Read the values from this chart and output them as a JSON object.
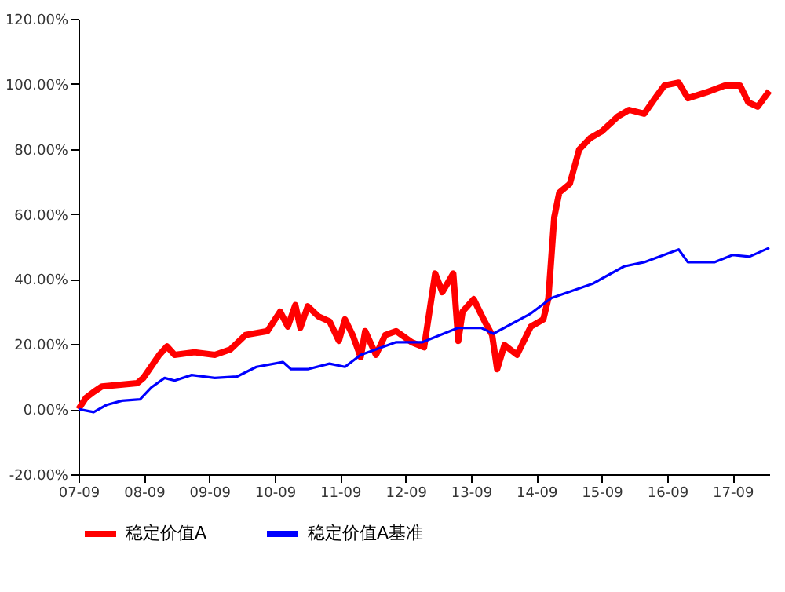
{
  "chart_data": {
    "type": "line",
    "legend": "bottom",
    "grid": false,
    "line_style": "solid",
    "marker": "none",
    "xlim": [
      "2007-09-01",
      "2018-03-25"
    ],
    "xticks": [
      {
        "value": "2007-09-01",
        "label": "07-09"
      },
      {
        "value": "2008-09-01",
        "label": "08-09"
      },
      {
        "value": "2009-09-01",
        "label": "09-09"
      },
      {
        "value": "2010-09-01",
        "label": "10-09"
      },
      {
        "value": "2011-09-01",
        "label": "11-09"
      },
      {
        "value": "2012-09-01",
        "label": "12-09"
      },
      {
        "value": "2013-09-01",
        "label": "13-09"
      },
      {
        "value": "2014-09-01",
        "label": "14-09"
      },
      {
        "value": "2015-09-01",
        "label": "15-09"
      },
      {
        "value": "2016-09-01",
        "label": "16-09"
      },
      {
        "value": "2017-09-01",
        "label": "17-09"
      }
    ],
    "ylim": [
      -20,
      120
    ],
    "yticks": [
      {
        "value": -20,
        "label": "-20.00%"
      },
      {
        "value": 0,
        "label": "0.00%"
      },
      {
        "value": 20,
        "label": "20.00%"
      },
      {
        "value": 40,
        "label": "40.00%"
      },
      {
        "value": 60,
        "label": "60.00%"
      },
      {
        "value": 80,
        "label": "80.00%"
      },
      {
        "value": 100,
        "label": "100.00%"
      },
      {
        "value": 120,
        "label": "120.00%"
      }
    ],
    "series": [
      {
        "name": "稳定价值A",
        "color": "#ff0000",
        "x": [
          "2007-09-01",
          "2007-10-13",
          "2007-11-25",
          "2008-01-10",
          "2008-07-25",
          "2008-08-28",
          "2008-11-25",
          "2009-01-07",
          "2009-02-19",
          "2009-06-10",
          "2009-10-01",
          "2009-12-28",
          "2010-03-22",
          "2010-07-22",
          "2010-10-01",
          "2010-11-13",
          "2010-12-25",
          "2011-01-22",
          "2011-03-04",
          "2011-05-04",
          "2011-07-04",
          "2011-08-25",
          "2011-09-28",
          "2011-11-10",
          "2011-12-25",
          "2012-01-19",
          "2012-03-19",
          "2012-05-10",
          "2012-07-10",
          "2012-10-04",
          "2012-12-13",
          "2013-02-13",
          "2013-03-25",
          "2013-05-25",
          "2013-06-22",
          "2013-07-16",
          "2013-09-16",
          "2013-11-16",
          "2013-12-28",
          "2014-01-25",
          "2014-03-07",
          "2014-05-16",
          "2014-08-01",
          "2014-10-10",
          "2014-11-07",
          "2014-12-10",
          "2015-01-07",
          "2015-03-07",
          "2015-04-28",
          "2015-06-28",
          "2015-09-04",
          "2015-12-01",
          "2016-02-01",
          "2016-04-25",
          "2016-06-25",
          "2016-08-16",
          "2016-11-04",
          "2016-12-25",
          "2017-04-07",
          "2017-07-19",
          "2017-10-13",
          "2017-11-28",
          "2018-01-19",
          "2018-03-25"
        ],
        "values": [
          0,
          3.5,
          5.3,
          7,
          8,
          9.6,
          16.7,
          19.3,
          16.7,
          17.5,
          16.7,
          18.4,
          22.8,
          24,
          30,
          25.4,
          32,
          25,
          31.6,
          28.5,
          27,
          21,
          27.6,
          22.8,
          16,
          24,
          16.7,
          22.8,
          24,
          20.6,
          19,
          41.7,
          36,
          41.7,
          21,
          30,
          33.8,
          27,
          22.8,
          12.3,
          19.7,
          16.7,
          25.4,
          27.6,
          34,
          59,
          66.6,
          69.3,
          79.8,
          83.3,
          85.5,
          90,
          92,
          90.8,
          95.6,
          99.5,
          100.4,
          95.6,
          97.4,
          99.5,
          99.5,
          94.3,
          93,
          97.8
        ]
      },
      {
        "name": "稳定价值A基准",
        "color": "#0000ff",
        "x": [
          "2007-09-01",
          "2007-11-25",
          "2008-02-05",
          "2008-05-01",
          "2008-08-10",
          "2008-10-10",
          "2008-12-25",
          "2009-02-19",
          "2009-05-25",
          "2009-10-01",
          "2010-02-01",
          "2010-05-22",
          "2010-10-16",
          "2010-12-01",
          "2011-03-04",
          "2011-07-04",
          "2011-09-28",
          "2011-12-25",
          "2012-07-10",
          "2012-12-04",
          "2013-06-22",
          "2013-10-28",
          "2014-01-04",
          "2014-08-01",
          "2014-11-25",
          "2015-07-13",
          "2016-01-04",
          "2016-04-25",
          "2016-11-04",
          "2016-12-25",
          "2017-05-22",
          "2017-09-01",
          "2017-12-04",
          "2018-03-25"
        ],
        "values": [
          0,
          -0.9,
          1.3,
          2.6,
          3,
          6.6,
          9.6,
          8.8,
          10.5,
          9.6,
          10,
          13,
          14.5,
          12.3,
          12.3,
          14,
          13,
          16.7,
          20.6,
          20.6,
          25,
          25,
          23.2,
          29.4,
          34.2,
          38.6,
          43.9,
          45.2,
          49.1,
          45.2,
          45.2,
          47.4,
          46.9,
          49.6
        ]
      }
    ]
  }
}
